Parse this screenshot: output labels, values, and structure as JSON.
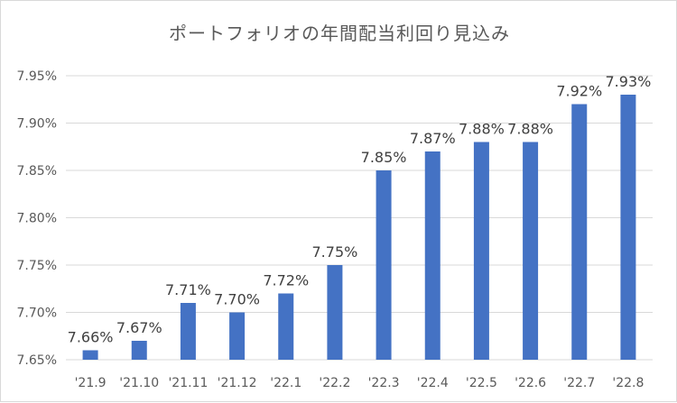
{
  "chart_data": {
    "type": "bar",
    "title": "ポートフォリオの年間配当利回り見込み",
    "xlabel": "",
    "ylabel": "",
    "categories": [
      "'21.9",
      "'21.10",
      "'21.11",
      "'21.12",
      "'22.1",
      "'22.2",
      "'22.3",
      "'22.4",
      "'22.5",
      "'22.6",
      "'22.7",
      "'22.8"
    ],
    "values": [
      7.66,
      7.67,
      7.71,
      7.7,
      7.72,
      7.75,
      7.85,
      7.87,
      7.88,
      7.88,
      7.92,
      7.93
    ],
    "data_labels": [
      "7.66%",
      "7.67%",
      "7.71%",
      "7.70%",
      "7.72%",
      "7.75%",
      "7.85%",
      "7.87%",
      "7.88%",
      "7.88%",
      "7.92%",
      "7.93%"
    ],
    "ylim": [
      7.65,
      7.95
    ],
    "y_ticks": [
      7.65,
      7.7,
      7.75,
      7.8,
      7.85,
      7.9,
      7.95
    ],
    "y_tick_labels": [
      "7.65%",
      "7.70%",
      "7.75%",
      "7.80%",
      "7.85%",
      "7.90%",
      "7.95%"
    ],
    "grid": true,
    "legend": "none",
    "bar_color": "#4472c4"
  }
}
